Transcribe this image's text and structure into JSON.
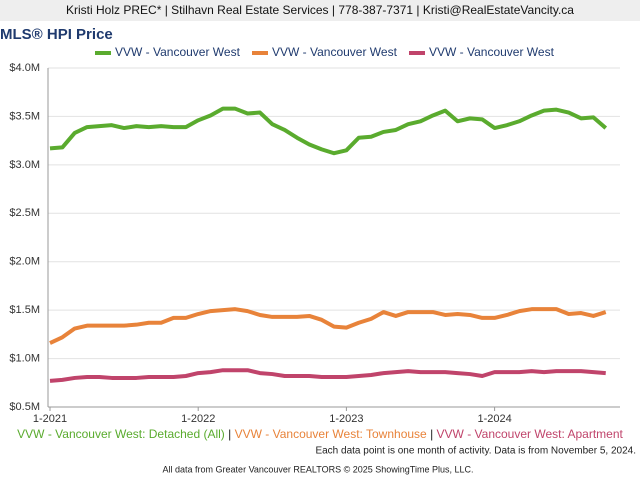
{
  "header": "Kristi Holz PREC* | Stilhavn Real Estate Services | 778-387-7371 | Kristi@RealEstateVancity.ca",
  "chart_data": {
    "type": "line",
    "title": "MLS® HPI Price",
    "categories": [
      "1-2021",
      null,
      null,
      null,
      null,
      null,
      null,
      null,
      null,
      null,
      null,
      null,
      "1-2022",
      null,
      null,
      null,
      null,
      null,
      null,
      null,
      null,
      null,
      null,
      null,
      "1-2023",
      null,
      null,
      null,
      null,
      null,
      null,
      null,
      null,
      null,
      null,
      null,
      "1-2024",
      null,
      null,
      null,
      null,
      null,
      null,
      null,
      null,
      null
    ],
    "series": [
      {
        "name": "VVW - Vancouver West",
        "full_label": "VVW - Vancouver West: Detached (All)",
        "color": "#5aab2e",
        "values": [
          3170000,
          3180000,
          3330000,
          3390000,
          3400000,
          3410000,
          3380000,
          3400000,
          3390000,
          3400000,
          3390000,
          3390000,
          3460000,
          3510000,
          3580000,
          3580000,
          3530000,
          3540000,
          3420000,
          3360000,
          3280000,
          3210000,
          3160000,
          3120000,
          3150000,
          3280000,
          3290000,
          3340000,
          3360000,
          3420000,
          3450000,
          3510000,
          3560000,
          3450000,
          3480000,
          3470000,
          3380000,
          3410000,
          3450000,
          3510000,
          3560000,
          3570000,
          3540000,
          3480000,
          3490000,
          3380000
        ]
      },
      {
        "name": "VVW - Vancouver West",
        "full_label": "VVW - Vancouver West: Townhouse",
        "color": "#e8833a",
        "values": [
          1160000,
          1220000,
          1310000,
          1340000,
          1340000,
          1340000,
          1340000,
          1350000,
          1370000,
          1370000,
          1420000,
          1420000,
          1460000,
          1490000,
          1500000,
          1510000,
          1490000,
          1450000,
          1430000,
          1430000,
          1430000,
          1440000,
          1400000,
          1330000,
          1320000,
          1370000,
          1410000,
          1480000,
          1440000,
          1480000,
          1480000,
          1480000,
          1450000,
          1460000,
          1450000,
          1420000,
          1420000,
          1450000,
          1490000,
          1510000,
          1510000,
          1510000,
          1460000,
          1470000,
          1440000,
          1480000
        ]
      },
      {
        "name": "VVW - Vancouver West",
        "full_label": "VVW - Vancouver West: Apartment",
        "color": "#c0446b",
        "values": [
          770000,
          780000,
          800000,
          810000,
          810000,
          800000,
          800000,
          800000,
          810000,
          810000,
          810000,
          820000,
          850000,
          860000,
          880000,
          880000,
          880000,
          850000,
          840000,
          820000,
          820000,
          820000,
          810000,
          810000,
          810000,
          820000,
          830000,
          850000,
          860000,
          870000,
          860000,
          860000,
          860000,
          850000,
          840000,
          820000,
          860000,
          860000,
          860000,
          870000,
          860000,
          870000,
          870000,
          870000,
          860000,
          850000
        ]
      }
    ],
    "legend_separator": "|",
    "ylim": [
      500000,
      4000000
    ],
    "yticks": [
      {
        "value": 500000,
        "label": "$0.5M"
      },
      {
        "value": 1000000,
        "label": "$1.0M"
      },
      {
        "value": 1500000,
        "label": "$1.5M"
      },
      {
        "value": 2000000,
        "label": "$2.0M"
      },
      {
        "value": 2500000,
        "label": "$2.5M"
      },
      {
        "value": 3000000,
        "label": "$3.0M"
      },
      {
        "value": 3500000,
        "label": "$3.5M"
      },
      {
        "value": 4000000,
        "label": "$4.0M"
      }
    ],
    "grid": true,
    "legend": "top",
    "note": "Each data point is one month of activity. Data is from November 5, 2024.",
    "source": "All data from Greater Vancouver REALTORS © 2025 ShowingTime Plus, LLC."
  }
}
